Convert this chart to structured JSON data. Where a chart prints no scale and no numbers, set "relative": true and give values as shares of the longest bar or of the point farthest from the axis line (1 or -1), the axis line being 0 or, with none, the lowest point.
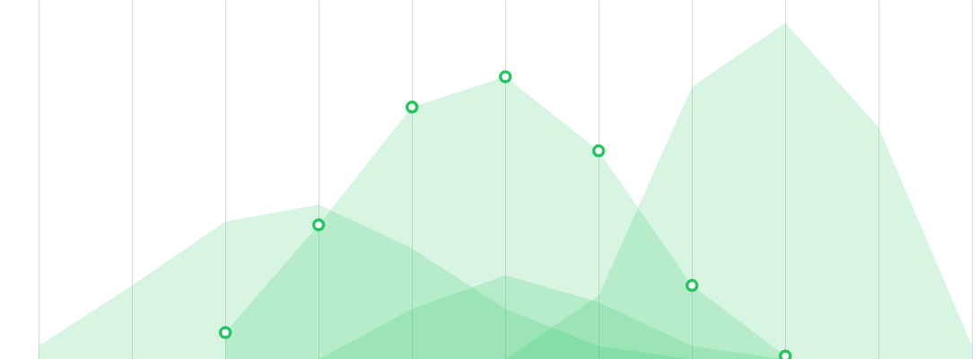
{
  "chart_data": {
    "type": "area",
    "relative": true,
    "grid": "x",
    "categories": [
      null,
      null,
      null,
      null,
      null,
      null,
      null,
      null,
      null,
      null,
      null
    ],
    "series": [
      {
        "color": "#22c55e",
        "values": [
          0.04,
          0.22,
          0.41,
          0.46,
          0.33,
          0.15,
          0.04,
          0,
          null,
          null,
          null
        ]
      },
      {
        "color": "#22c55e",
        "values": [
          null,
          null,
          0.08,
          0.4,
          0.75,
          0.84,
          0.62,
          0.22,
          0.01,
          null,
          null
        ],
        "marker": "circle"
      },
      {
        "color": "#22c55e",
        "values": [
          null,
          null,
          null,
          null,
          null,
          0,
          0.19,
          0.81,
          1,
          0.69,
          0.04
        ]
      },
      {
        "color": "#21c45d",
        "values": [
          null,
          null,
          null,
          0,
          0.15,
          0.25,
          0.17,
          0.04,
          0,
          null,
          null
        ]
      }
    ]
  }
}
